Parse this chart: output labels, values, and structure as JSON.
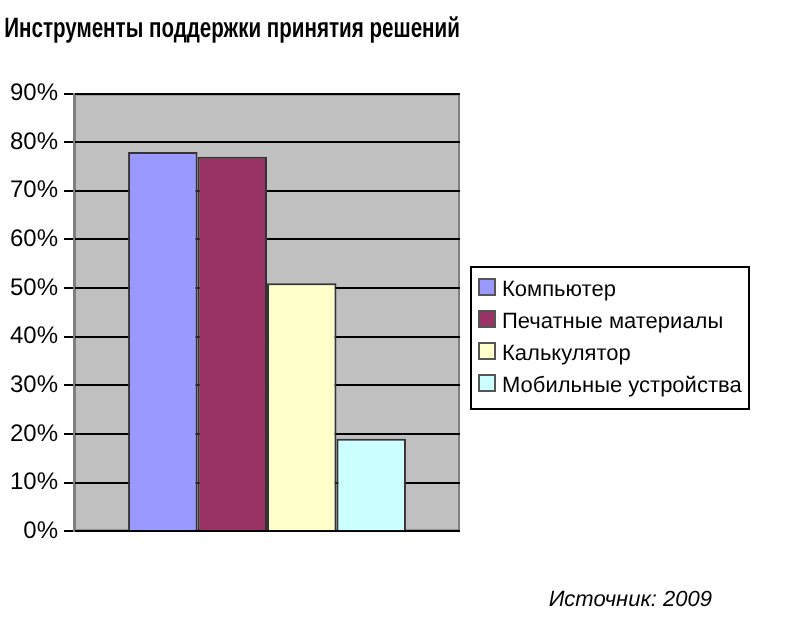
{
  "chart_data": {
    "type": "bar",
    "title": "Инструменты поддержки принятия решений",
    "categories": [
      null
    ],
    "series": [
      {
        "name": "Компьютер",
        "color": "#9999ff",
        "values": [
          78
        ]
      },
      {
        "name": "Печатные материалы",
        "color": "#993366",
        "values": [
          77
        ]
      },
      {
        "name": "Калькулятор",
        "color": "#ffffcc",
        "values": [
          51
        ]
      },
      {
        "name": "Мобильные устройства",
        "color": "#ccffff",
        "values": [
          19
        ]
      }
    ],
    "ylim": [
      0,
      90
    ],
    "yticks": [
      {
        "value": 0,
        "label": "0%"
      },
      {
        "value": 10,
        "label": "10%"
      },
      {
        "value": 20,
        "label": "20%"
      },
      {
        "value": 30,
        "label": "30%"
      },
      {
        "value": 40,
        "label": "40%"
      },
      {
        "value": 50,
        "label": "50%"
      },
      {
        "value": 60,
        "label": "60%"
      },
      {
        "value": 70,
        "label": "70%"
      },
      {
        "value": 80,
        "label": "80%"
      },
      {
        "value": 90,
        "label": "90%"
      }
    ],
    "grid": "y",
    "legend": "right",
    "annotations": [
      "Источник: 2009"
    ]
  }
}
